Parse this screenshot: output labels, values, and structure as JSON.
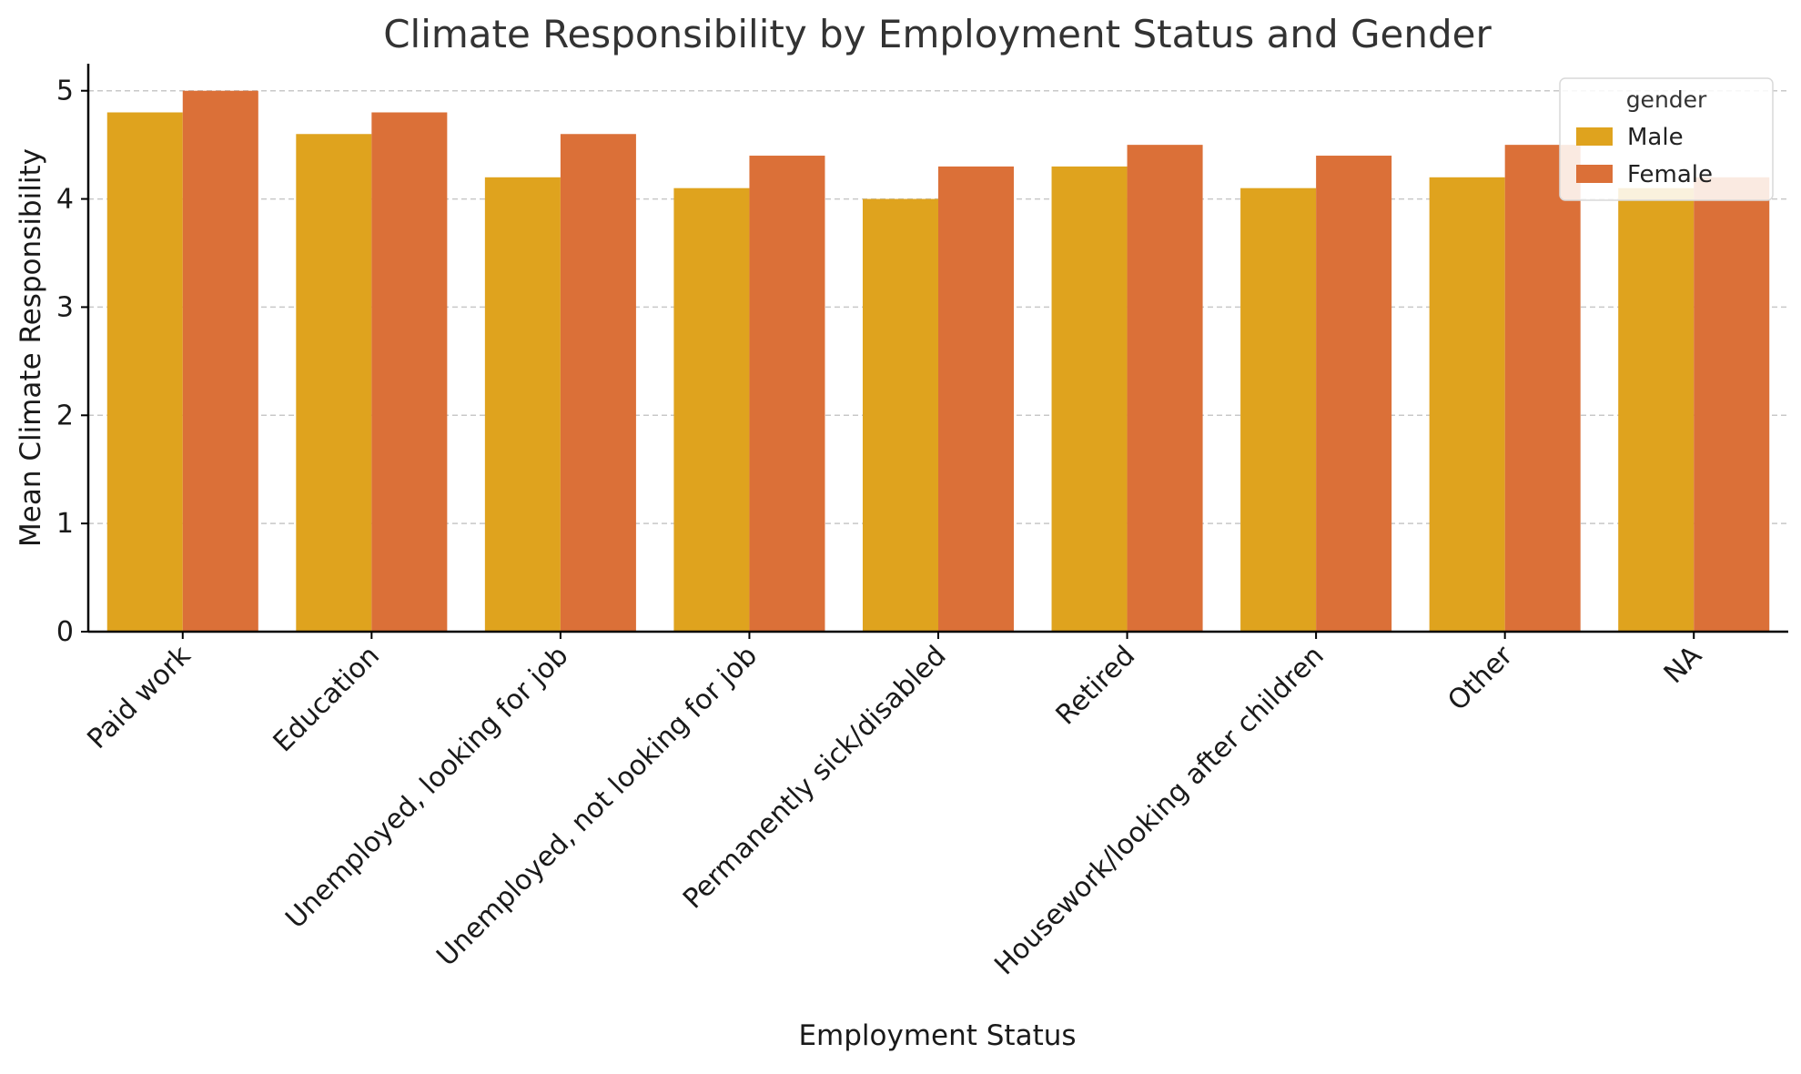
{
  "chart_data": {
    "type": "bar",
    "title": "Climate Responsibility by Employment Status and Gender",
    "xlabel": "Employment Status",
    "ylabel": "Mean Climate Responsibility",
    "categories": [
      "Paid work",
      "Education",
      "Unemployed, looking for job",
      "Unemployed, not looking for job",
      "Permanently sick/disabled",
      "Retired",
      "Housework/looking after children",
      "Other",
      "NA"
    ],
    "series": [
      {
        "name": "Male",
        "color": "#dfa31e",
        "values": [
          4.8,
          4.6,
          4.2,
          4.1,
          4.0,
          4.3,
          4.1,
          4.2,
          4.1
        ]
      },
      {
        "name": "Female",
        "color": "#db7038",
        "values": [
          5.0,
          4.8,
          4.6,
          4.4,
          4.3,
          4.5,
          4.4,
          4.5,
          4.2
        ]
      }
    ],
    "ylim": [
      0,
      5.25
    ],
    "yticks": [
      0,
      1,
      2,
      3,
      4,
      5
    ],
    "grid": "y-dashed",
    "legend": {
      "title": "gender",
      "placement": "top-right"
    }
  }
}
